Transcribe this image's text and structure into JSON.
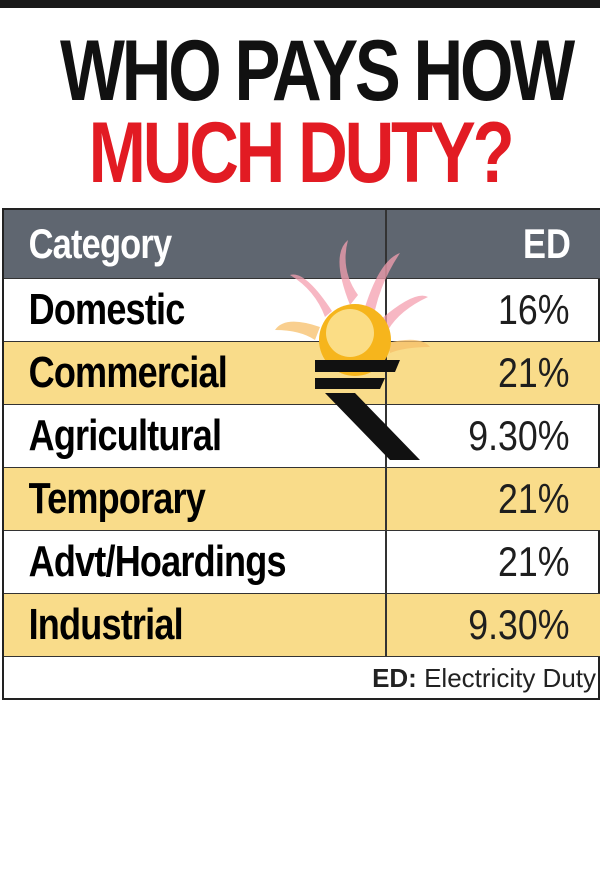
{
  "title": {
    "line1": "WHO PAYS HOW",
    "line2": "MUCH DUTY?"
  },
  "table": {
    "headers": [
      "Category",
      "ED"
    ],
    "rows": [
      {
        "category": "Domestic",
        "ed": "16%"
      },
      {
        "category": "Commercial",
        "ed": "21%"
      },
      {
        "category": "Agricultural",
        "ed": "9.30%"
      },
      {
        "category": "Temporary",
        "ed": "21%"
      },
      {
        "category": "Advt/Hoardings",
        "ed": "21%"
      },
      {
        "category": "Industrial",
        "ed": "9.30%"
      }
    ]
  },
  "footnote": {
    "abbr": "ED:",
    "text": "Electricity Duty"
  },
  "colors": {
    "title_dark": "#111111",
    "title_red": "#e21b23",
    "header_bg": "#5f6670",
    "stripe": "#f9dc8a"
  },
  "chart_data": {
    "type": "table",
    "columns": [
      "Category",
      "ED"
    ],
    "rows": [
      [
        "Domestic",
        "16%"
      ],
      [
        "Commercial",
        "21%"
      ],
      [
        "Agricultural",
        "9.30%"
      ],
      [
        "Temporary",
        "21%"
      ],
      [
        "Advt/Hoardings",
        "21%"
      ],
      [
        "Industrial",
        "9.30%"
      ]
    ],
    "values_percent": [
      16,
      21,
      9.3,
      21,
      21,
      9.3
    ],
    "title": "WHO PAYS HOW MUCH DUTY?"
  }
}
